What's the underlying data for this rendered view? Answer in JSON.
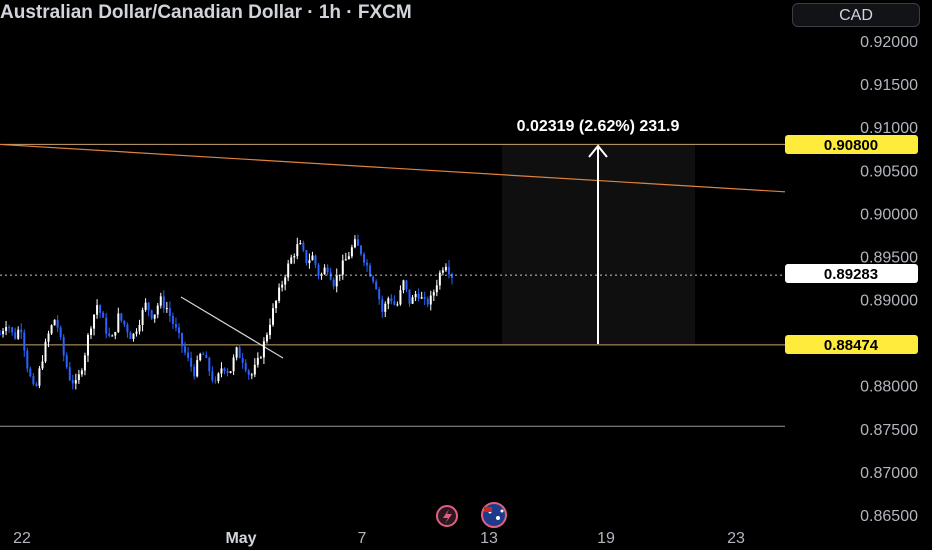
{
  "header": {
    "title": "Australian Dollar/Canadian Dollar · 1h · FXCM",
    "currency_button": "CAD"
  },
  "chart_data": {
    "type": "candlestick",
    "symbol": "AUDCAD",
    "interval": "1h",
    "source": "FXCM",
    "ylim": [
      0.8625,
      0.9225
    ],
    "y_ticks": [
      "0.92000",
      "0.91500",
      "0.91000",
      "0.90500",
      "0.90000",
      "0.89500",
      "0.89000",
      "0.88500",
      "0.88000",
      "0.87500",
      "0.87000",
      "0.86500"
    ],
    "y_tick_values": [
      0.92,
      0.915,
      0.91,
      0.905,
      0.9,
      0.895,
      0.89,
      0.885,
      0.88,
      0.875,
      0.87,
      0.865
    ],
    "x_ticks": [
      {
        "label": "22",
        "bold": false
      },
      {
        "label": "May",
        "bold": true
      },
      {
        "label": "7",
        "bold": false
      },
      {
        "label": "13",
        "bold": false
      },
      {
        "label": "19",
        "bold": false
      },
      {
        "label": "23",
        "bold": false
      }
    ],
    "price_path": [
      [
        0.886,
        0.8875,
        0.8855,
        0.887,
        0.882,
        0.879,
        0.883,
        0.886,
        0.888,
        0.884,
        0.881,
        0.88,
        0.883,
        0.887,
        0.8895,
        0.887,
        0.885,
        0.888,
        0.887,
        0.8855,
        0.8875,
        0.8895,
        0.888,
        0.89,
        0.889,
        0.887,
        0.885,
        0.883,
        0.8815,
        0.884,
        0.882,
        0.88,
        0.8825,
        0.8815,
        0.884,
        0.883,
        0.881,
        0.8825,
        0.885,
        0.888,
        0.8905,
        0.893,
        0.895,
        0.8965,
        0.8945,
        0.895,
        0.8925,
        0.894,
        0.892,
        0.8935,
        0.895,
        0.8965,
        0.8955,
        0.8935,
        0.892,
        0.8885,
        0.8905,
        0.889,
        0.892,
        0.8895,
        0.891,
        0.8895,
        0.89,
        0.8925,
        0.8945,
        0.8928
      ]
    ],
    "current_price": "0.89283",
    "horizontal_levels": [
      {
        "value": 0.908,
        "label": "0.90800",
        "color": "#c9a56b"
      },
      {
        "value": 0.88474,
        "label": "0.88474",
        "color": "#c9a56b"
      },
      {
        "value": 0.8753,
        "color": "#9598a1"
      }
    ],
    "trendline": {
      "color": "#e0823d",
      "start": [
        0,
        0.908
      ],
      "end": [
        1,
        0.9025
      ]
    },
    "measure": {
      "label": "0.02319 (2.62%) 231.9",
      "from": 0.88474,
      "to": 0.908
    },
    "colors": {
      "up": "#ffffff",
      "down": "#2962ff",
      "tag_yellow": "#ffeb3b",
      "tag_white": "#ffffff"
    }
  }
}
